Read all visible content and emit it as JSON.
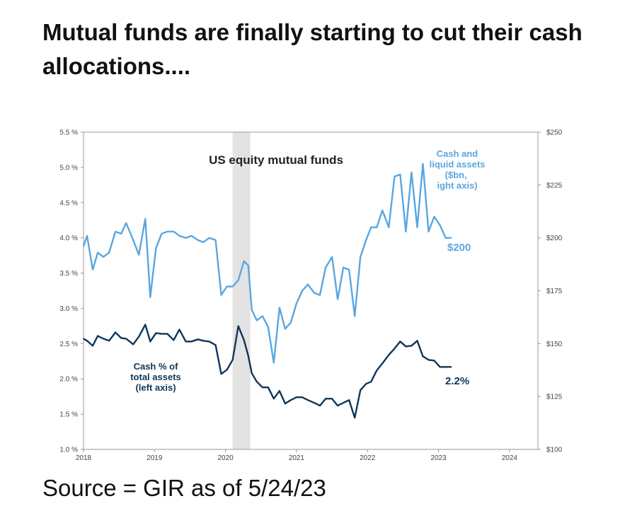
{
  "headline": "Mutual funds are finally starting to cut their cash allocations....",
  "source": "Source = GIR as of 5/24/23",
  "colors": {
    "cash_assets": "#5aa6e0",
    "cash_pct": "#0f3658",
    "shade": "#e3e3e3",
    "axis": "#999999"
  },
  "chart_data": {
    "type": "line",
    "title": "US equity mutual funds",
    "x_ticks": [
      "2018",
      "2019",
      "2020",
      "2021",
      "2022",
      "2023",
      "2024"
    ],
    "xlim": [
      2018,
      2024.4
    ],
    "left_axis": {
      "label": "Cash % of total assets (left axis)",
      "ylim": [
        1.0,
        5.5
      ],
      "ticks": [
        "1.0 %",
        "1.5 %",
        "2.0 %",
        "2.5 %",
        "3.0 %",
        "3.5 %",
        "4.0 %",
        "4.5 %",
        "5.0 %",
        "5.5 %"
      ]
    },
    "right_axis": {
      "label": "Cash and liquid assets ($bn, right axis)",
      "ylim": [
        100,
        250
      ],
      "ticks": [
        "$100",
        "$125",
        "$150",
        "$175",
        "$200",
        "$225",
        "$250"
      ]
    },
    "shaded_region": [
      2020.1,
      2020.35
    ],
    "grid": false,
    "series": [
      {
        "name": "Cash and liquid assets ($bn, right axis)",
        "axis": "right",
        "end_label": "$200",
        "x": [
          2018.0,
          2018.05,
          2018.13,
          2018.2,
          2018.28,
          2018.36,
          2018.45,
          2018.53,
          2018.6,
          2018.7,
          2018.78,
          2018.87,
          2018.94,
          2019.02,
          2019.1,
          2019.18,
          2019.27,
          2019.35,
          2019.44,
          2019.52,
          2019.61,
          2019.69,
          2019.77,
          2019.86,
          2019.94,
          2020.02,
          2020.1,
          2020.18,
          2020.26,
          2020.32,
          2020.37,
          2020.44,
          2020.52,
          2020.6,
          2020.68,
          2020.76,
          2020.84,
          2020.92,
          2021.0,
          2021.08,
          2021.16,
          2021.25,
          2021.33,
          2021.41,
          2021.5,
          2021.58,
          2021.66,
          2021.74,
          2021.82,
          2021.9,
          2021.98,
          2022.05,
          2022.13,
          2022.21,
          2022.3,
          2022.38,
          2022.46,
          2022.54,
          2022.62,
          2022.7,
          2022.78,
          2022.86,
          2022.94,
          2023.02,
          2023.1,
          2023.18
        ],
        "values": [
          196,
          201,
          185,
          193,
          191,
          193,
          203,
          202,
          207,
          199,
          192,
          209,
          172,
          195,
          202,
          203,
          203,
          201,
          200,
          201,
          199,
          198,
          200,
          199,
          173,
          177,
          177,
          180,
          189,
          187,
          166,
          161,
          163,
          158,
          141,
          167,
          157,
          160,
          169,
          175,
          178,
          174,
          173,
          186,
          191,
          171,
          186,
          185,
          163,
          191,
          199,
          205,
          205,
          213,
          205,
          229,
          230,
          203,
          231,
          205,
          235,
          203,
          210,
          206,
          200,
          200
        ]
      },
      {
        "name": "Cash % of total assets (left axis)",
        "axis": "left",
        "end_label": "2.2%",
        "x": [
          2018.0,
          2018.05,
          2018.13,
          2018.2,
          2018.28,
          2018.36,
          2018.45,
          2018.53,
          2018.6,
          2018.7,
          2018.78,
          2018.87,
          2018.94,
          2019.02,
          2019.1,
          2019.18,
          2019.27,
          2019.35,
          2019.44,
          2019.52,
          2019.61,
          2019.69,
          2019.77,
          2019.86,
          2019.94,
          2020.02,
          2020.1,
          2020.18,
          2020.26,
          2020.32,
          2020.37,
          2020.44,
          2020.52,
          2020.6,
          2020.68,
          2020.76,
          2020.84,
          2020.92,
          2021.0,
          2021.08,
          2021.16,
          2021.25,
          2021.33,
          2021.41,
          2021.5,
          2021.58,
          2021.66,
          2021.74,
          2021.82,
          2021.9,
          2021.98,
          2022.05,
          2022.13,
          2022.21,
          2022.3,
          2022.38,
          2022.46,
          2022.54,
          2022.62,
          2022.7,
          2022.78,
          2022.86,
          2022.94,
          2023.02,
          2023.1,
          2023.18
        ],
        "values": [
          2.57,
          2.54,
          2.47,
          2.61,
          2.57,
          2.54,
          2.66,
          2.58,
          2.57,
          2.49,
          2.6,
          2.77,
          2.53,
          2.65,
          2.64,
          2.64,
          2.55,
          2.7,
          2.53,
          2.53,
          2.56,
          2.54,
          2.53,
          2.48,
          2.07,
          2.13,
          2.27,
          2.75,
          2.55,
          2.33,
          2.08,
          1.96,
          1.88,
          1.88,
          1.72,
          1.83,
          1.65,
          1.7,
          1.74,
          1.74,
          1.7,
          1.66,
          1.62,
          1.72,
          1.72,
          1.62,
          1.66,
          1.7,
          1.45,
          1.84,
          1.93,
          1.96,
          2.12,
          2.22,
          2.34,
          2.43,
          2.53,
          2.46,
          2.47,
          2.54,
          2.32,
          2.27,
          2.26,
          2.17,
          2.17,
          2.17
        ]
      }
    ]
  }
}
